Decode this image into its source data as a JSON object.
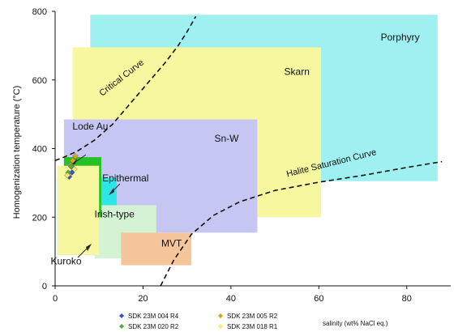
{
  "chart_data": {
    "type": "area",
    "title": "",
    "xlabel": "salinity (wt% NaCl eq.)",
    "ylabel": "Homogenization temperature (°C)",
    "xlim": [
      0,
      90
    ],
    "ylim": [
      0,
      800
    ],
    "x_ticks": [
      0,
      20,
      40,
      60,
      80
    ],
    "y_ticks": [
      0,
      200,
      400,
      600,
      800
    ],
    "grid": false,
    "regions": [
      {
        "name": "Porphyry",
        "x": [
          8,
          87
        ],
        "y": [
          305,
          790
        ],
        "color": "#9ff0f0"
      },
      {
        "name": "Skarn",
        "x": [
          4,
          60.5
        ],
        "y": [
          200,
          695
        ],
        "color": "#f7f7a0"
      },
      {
        "name": "Sn-W",
        "x": [
          2,
          46
        ],
        "y": [
          155,
          485
        ],
        "color": "#c6c6f3"
      },
      {
        "name": "Epithermal",
        "x": [
          0.5,
          14
        ],
        "y": [
          90,
          315
        ],
        "color": "#2ee6e6"
      },
      {
        "name": "Irish-type",
        "x": [
          9,
          23
        ],
        "y": [
          80,
          235
        ],
        "color": "#d4f3d4"
      },
      {
        "name": "MVT",
        "x": [
          15,
          31
        ],
        "y": [
          60,
          155
        ],
        "color": "#f5c59b"
      },
      {
        "name": "Lode Au",
        "x": [
          2,
          10.5
        ],
        "y": [
          200,
          375
        ],
        "color": "#24c224"
      },
      {
        "name": "Kuroko",
        "x": [
          0.5,
          10
        ],
        "y": [
          90,
          350
        ],
        "color": "#f7f7a0"
      }
    ],
    "region_labels": [
      {
        "text": "Porphyry",
        "x": 78.5,
        "y": 715
      },
      {
        "text": "Skarn",
        "x": 55,
        "y": 615
      },
      {
        "text": "Sn-W",
        "x": 39,
        "y": 420
      },
      {
        "text": "Lode Au",
        "x": 8,
        "y": 455
      },
      {
        "text": "Epithermal",
        "x": 16,
        "y": 305
      },
      {
        "text": "Irish-type",
        "x": 13.5,
        "y": 200
      },
      {
        "text": "MVT",
        "x": 26.5,
        "y": 115
      },
      {
        "text": "Kuroko",
        "x": 2.5,
        "y": 62
      }
    ],
    "curves": [
      {
        "name": "Critical Curve",
        "x": [
          0,
          2,
          5,
          9,
          13,
          17,
          21,
          25,
          28,
          30,
          32
        ],
        "y": [
          365,
          375,
          392,
          425,
          470,
          530,
          590,
          650,
          700,
          740,
          785
        ]
      },
      {
        "name": "Halite Saturation Curve",
        "x": [
          24,
          27,
          31,
          36,
          42,
          50,
          60,
          70,
          80,
          88
        ],
        "y": [
          0,
          75,
          150,
          205,
          245,
          278,
          302,
          322,
          345,
          362
        ]
      }
    ],
    "curve_labels": [
      {
        "text": "Critical Curve",
        "x": 15.5,
        "y": 600,
        "angle": -38
      },
      {
        "text": "Halite Saturation Curve",
        "x": 63,
        "y": 350,
        "angle": -14
      }
    ],
    "series": [
      {
        "name": "SDK 23M 004 R4",
        "color": "#2f56c4",
        "marker": "diamond",
        "x": [
          3.2,
          3.8,
          4.2
        ],
        "y": [
          318,
          330,
          342
        ]
      },
      {
        "name": "SDK 23M 005 R2",
        "color": "#e0a21a",
        "marker": "diamond",
        "x": [
          3.5,
          4.0,
          4.6
        ],
        "y": [
          352,
          365,
          378
        ]
      },
      {
        "name": "SDK 23M 020 R2",
        "color": "#5aa83c",
        "marker": "diamond",
        "x": [
          3.0,
          3.6
        ],
        "y": [
          330,
          348
        ]
      },
      {
        "name": "SDK 23M 018 R1",
        "color": "#f3e96a",
        "marker": "diamond",
        "x": [
          2.8,
          4.4
        ],
        "y": [
          322,
          340
        ]
      }
    ]
  }
}
